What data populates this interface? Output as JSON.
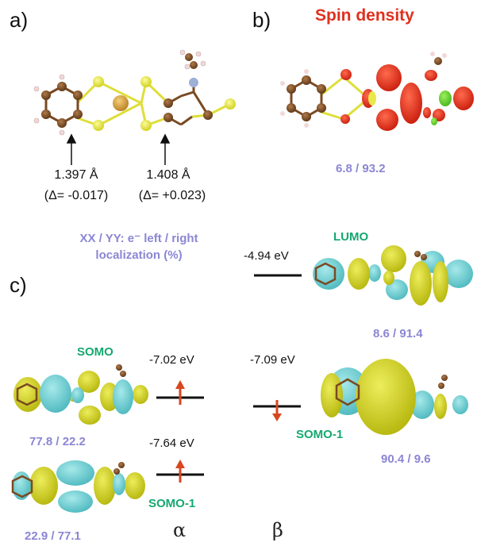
{
  "panels": {
    "a": "a)",
    "b": "b)",
    "c": "c)"
  },
  "spin_title": "Spin density",
  "bonds": [
    {
      "length": "1.397 Å",
      "delta": "(Δ= -0.017)"
    },
    {
      "length": "1.408 Å",
      "delta": "(Δ= +0.023)"
    }
  ],
  "spin_ratio": "6.8 / 93.2",
  "legend": {
    "line1": "XX / YY: e⁻ left / right",
    "line2": "localization  (%)"
  },
  "orbitals": {
    "lumo": {
      "name": "LUMO",
      "energy": "-4.94 eV",
      "ratio": "8.6 / 91.4"
    },
    "somo_alpha": {
      "name": "SOMO",
      "energy": "-7.02 eV",
      "ratio": "77.8 / 22.2"
    },
    "somo1_alpha": {
      "name": "SOMO-1",
      "energy": "-7.64 eV",
      "ratio": "22.9 / 77.1"
    },
    "somo1_beta": {
      "name": "SOMO-1",
      "energy": "-7.09 eV",
      "ratio": "90.4 / 9.6"
    }
  },
  "spin_labels": {
    "alpha": "α",
    "beta": "β"
  },
  "colors": {
    "spin_red": "#e0301e",
    "ratio_purple": "#8b86d4",
    "orbital_green": "#15a870",
    "lobe_yellow": "#cfcf1e",
    "lobe_cyan": "#62c9cd",
    "sulfur": "#e4e43c",
    "carbon": "#7a4a22",
    "nickel": "#d9a03a",
    "nitrogen": "#9db0d8",
    "arrow_red": "#d8461f"
  }
}
